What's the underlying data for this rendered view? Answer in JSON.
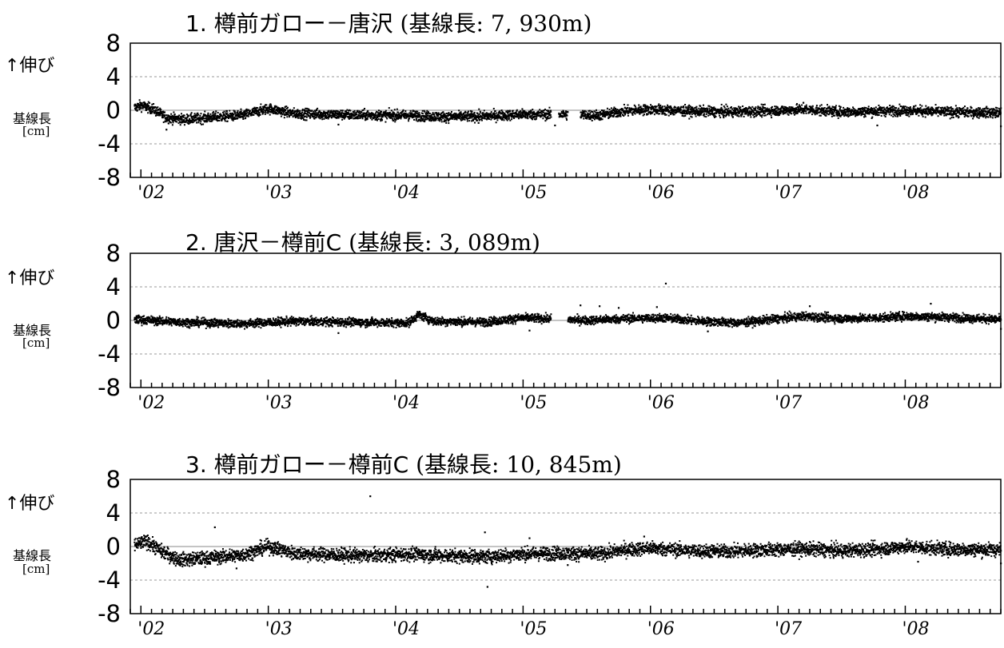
{
  "chart_data": [
    {
      "type": "scatter",
      "title": "1. 樽前ガロー－唐沢（基線長: 7, 930m）",
      "title_parts": {
        "num": "1.",
        "name": "樽前ガロー－唐沢",
        "open": "(",
        "base_label": "基線長",
        "base_value": ": 7, 930m",
        "close": ")"
      },
      "y_up_label": "↑伸び",
      "ylabel": "基線長",
      "yunit": "[cm]",
      "ylim": [
        -8,
        8
      ],
      "yticks": [
        "8",
        "4",
        "0",
        "-4",
        "-8"
      ],
      "xlim": [
        "2001-12",
        "2008-10"
      ],
      "xticks": [
        "'02",
        "'03",
        "'04",
        "'05",
        "'06",
        "'07",
        "'08"
      ],
      "grid": "dashed at ±4",
      "trend": [
        [
          2001.95,
          0.3
        ],
        [
          2002.0,
          0.6
        ],
        [
          2002.1,
          0.1
        ],
        [
          2002.2,
          -0.9
        ],
        [
          2002.35,
          -1.1
        ],
        [
          2002.6,
          -0.8
        ],
        [
          2002.8,
          -0.6
        ],
        [
          2003.0,
          0.2
        ],
        [
          2003.2,
          -0.4
        ],
        [
          2003.5,
          -0.5
        ],
        [
          2003.8,
          -0.6
        ],
        [
          2004.1,
          -0.6
        ],
        [
          2004.4,
          -0.8
        ],
        [
          2004.7,
          -0.7
        ],
        [
          2005.0,
          -0.5
        ],
        [
          2005.3,
          -0.5
        ],
        [
          2005.6,
          -0.6
        ],
        [
          2005.8,
          -0.1
        ],
        [
          2006.0,
          0.1
        ],
        [
          2006.3,
          -0.1
        ],
        [
          2006.6,
          -0.2
        ],
        [
          2006.9,
          -0.1
        ],
        [
          2007.2,
          0.1
        ],
        [
          2007.5,
          -0.2
        ],
        [
          2007.8,
          -0.1
        ],
        [
          2008.0,
          0.0
        ],
        [
          2008.3,
          -0.2
        ],
        [
          2008.75,
          -0.3
        ]
      ],
      "gaps": [
        [
          2005.22,
          2005.28
        ],
        [
          2005.35,
          2005.45
        ]
      ],
      "outliers": [
        [
          2002.2,
          -2.3
        ],
        [
          2003.55,
          -1.7
        ],
        [
          2004.65,
          -1.5
        ],
        [
          2005.25,
          -1.8
        ],
        [
          2007.2,
          0.9
        ],
        [
          2007.78,
          -1.8
        ],
        [
          2008.75,
          -1.9
        ]
      ],
      "noise": 0.3
    },
    {
      "type": "scatter",
      "title": "2. 唐沢－樽前C（基線長: 3, 089m）",
      "title_parts": {
        "num": "2.",
        "name": "唐沢－樽前C",
        "open": "(",
        "base_label": "基線長",
        "base_value": ": 3, 089m",
        "close": ")"
      },
      "y_up_label": "↑伸び",
      "ylabel": "基線長",
      "yunit": "[cm]",
      "ylim": [
        -8,
        8
      ],
      "yticks": [
        "8",
        "4",
        "0",
        "-4",
        "-8"
      ],
      "xlim": [
        "2001-12",
        "2008-10"
      ],
      "xticks": [
        "'02",
        "'03",
        "'04",
        "'05",
        "'06",
        "'07",
        "'08"
      ],
      "grid": "dashed at ±4",
      "trend": [
        [
          2001.95,
          0.1
        ],
        [
          2002.3,
          -0.2
        ],
        [
          2002.8,
          -0.4
        ],
        [
          2003.2,
          -0.1
        ],
        [
          2003.6,
          -0.2
        ],
        [
          2004.1,
          -0.3
        ],
        [
          2004.18,
          0.7
        ],
        [
          2004.3,
          -0.1
        ],
        [
          2004.7,
          -0.2
        ],
        [
          2005.0,
          0.3
        ],
        [
          2005.2,
          0.2
        ],
        [
          2005.5,
          0.0
        ],
        [
          2005.8,
          0.2
        ],
        [
          2006.1,
          0.3
        ],
        [
          2006.4,
          -0.1
        ],
        [
          2006.7,
          -0.3
        ],
        [
          2007.0,
          0.2
        ],
        [
          2007.2,
          0.5
        ],
        [
          2007.5,
          0.2
        ],
        [
          2007.8,
          0.3
        ],
        [
          2008.0,
          0.5
        ],
        [
          2008.3,
          0.4
        ],
        [
          2008.75,
          0.1
        ]
      ],
      "gaps": [
        [
          2005.22,
          2005.35
        ]
      ],
      "outliers": [
        [
          2006.12,
          4.4
        ],
        [
          2005.45,
          1.8
        ],
        [
          2005.6,
          1.7
        ],
        [
          2005.75,
          1.5
        ],
        [
          2006.05,
          1.6
        ],
        [
          2007.25,
          1.7
        ],
        [
          2008.2,
          2.0
        ],
        [
          2003.55,
          -1.5
        ],
        [
          2005.05,
          -1.2
        ],
        [
          2006.45,
          -1.3
        ],
        [
          2008.75,
          -1.0
        ]
      ],
      "noise": 0.25
    },
    {
      "type": "scatter",
      "title": "3. 樽前ガロー－樽前C（基線長: 10, 845m）",
      "title_parts": {
        "num": "3.",
        "name": "樽前ガロー－樽前C",
        "open": "(",
        "base_label": "基線長",
        "base_value": ": 10, 845m",
        "close": ")"
      },
      "y_up_label": "↑伸び",
      "ylabel": "基線長",
      "yunit": "[cm]",
      "ylim": [
        -8,
        8
      ],
      "yticks": [
        "8",
        "4",
        "0",
        "-4",
        "-8"
      ],
      "xlim": [
        "2001-12",
        "2008-10"
      ],
      "xticks": [
        "'02",
        "'03",
        "'04",
        "'05",
        "'06",
        "'07",
        "'08"
      ],
      "grid": "dashed at ±4",
      "trend": [
        [
          2001.95,
          0.2
        ],
        [
          2002.05,
          0.6
        ],
        [
          2002.15,
          -0.5
        ],
        [
          2002.3,
          -1.6
        ],
        [
          2002.5,
          -1.4
        ],
        [
          2002.8,
          -1.0
        ],
        [
          2003.0,
          0.0
        ],
        [
          2003.2,
          -0.8
        ],
        [
          2003.5,
          -1.0
        ],
        [
          2003.8,
          -1.1
        ],
        [
          2004.1,
          -0.9
        ],
        [
          2004.4,
          -1.1
        ],
        [
          2004.7,
          -1.2
        ],
        [
          2005.0,
          -0.9
        ],
        [
          2005.3,
          -0.8
        ],
        [
          2005.6,
          -0.9
        ],
        [
          2005.8,
          -0.4
        ],
        [
          2006.0,
          -0.2
        ],
        [
          2006.3,
          -0.5
        ],
        [
          2006.6,
          -0.6
        ],
        [
          2006.9,
          -0.4
        ],
        [
          2007.2,
          -0.3
        ],
        [
          2007.5,
          -0.5
        ],
        [
          2007.8,
          -0.3
        ],
        [
          2008.0,
          0.0
        ],
        [
          2008.3,
          -0.3
        ],
        [
          2008.75,
          -0.4
        ]
      ],
      "gaps": [],
      "outliers": [
        [
          2003.8,
          6.0
        ],
        [
          2002.58,
          2.3
        ],
        [
          2004.7,
          1.7
        ],
        [
          2005.05,
          1.0
        ],
        [
          2004.72,
          -4.8
        ],
        [
          2002.75,
          -2.6
        ],
        [
          2005.35,
          -2.2
        ],
        [
          2005.95,
          1.2
        ],
        [
          2008.1,
          -1.8
        ],
        [
          2008.75,
          -2.0
        ]
      ],
      "noise": 0.4
    }
  ]
}
